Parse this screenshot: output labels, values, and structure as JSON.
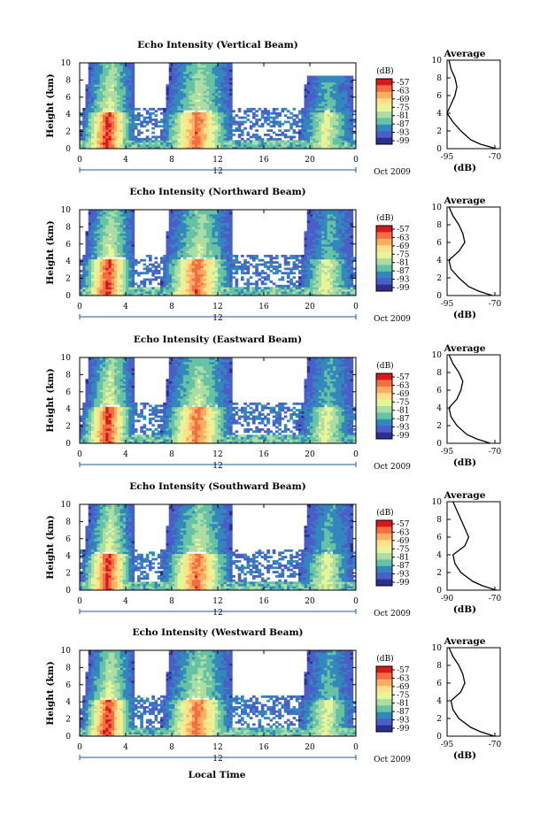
{
  "figure": {
    "xlabel": "Local Time",
    "date_label": "Oct 2009",
    "x_ticks": [
      "0",
      "4",
      "8",
      "12",
      "16",
      "20",
      "0"
    ],
    "x_mid_label": "12",
    "y_label": "Height (km)",
    "y_ticks": [
      "0",
      "2",
      "4",
      "6",
      "8",
      "10"
    ],
    "colorbar_unit": "(dB)",
    "colorbar_ticks": [
      "-57",
      "-63",
      "-69",
      "-75",
      "-81",
      "-87",
      "-93",
      "-99"
    ],
    "colorbar_colors": [
      "#d7191c",
      "#f46d43",
      "#fdae61",
      "#fee08b",
      "#e6f598",
      "#abdda4",
      "#66c2a5",
      "#3288bd",
      "#4a5ec9",
      "#2b2f8f"
    ],
    "avg_title": "Average",
    "avg_xlabel": "(dB)",
    "avg_y_ticks": [
      "0",
      "2",
      "4",
      "6",
      "8",
      "10"
    ]
  },
  "chart_data": [
    {
      "type": "heatmap",
      "title": "Echo Intensity (Vertical Beam)",
      "xlabel": "Local Time",
      "ylabel": "Height (km)",
      "xlim": [
        0,
        24
      ],
      "ylim": [
        0,
        10
      ],
      "clim": [
        -99,
        -57
      ],
      "precip_events": [
        {
          "start_hr": 1.5,
          "end_hr": 4.0,
          "max_height_km": 10.0,
          "core_dB": -57
        },
        {
          "start_hr": 8.5,
          "end_hr": 12.5,
          "max_height_km": 10.0,
          "core_dB": -61
        },
        {
          "start_hr": 20.5,
          "end_hr": 23.0,
          "max_height_km": 8.5,
          "core_dB": -75
        }
      ],
      "average_profile": {
        "xlim": [
          -95,
          -68
        ],
        "xticks": [
          "-95",
          "-70"
        ],
        "height_km": [
          0,
          0.5,
          1,
          2,
          3,
          4,
          5,
          6,
          7,
          8,
          9,
          10
        ],
        "dB": [
          -70,
          -78,
          -83,
          -88,
          -92,
          -95,
          -93,
          -91,
          -90,
          -91,
          -93,
          -94
        ]
      }
    },
    {
      "type": "heatmap",
      "title": "Echo Intensity (Northward Beam)",
      "xlabel": "Local Time",
      "ylabel": "Height (km)",
      "xlim": [
        0,
        24
      ],
      "ylim": [
        0,
        10
      ],
      "clim": [
        -99,
        -57
      ],
      "precip_events": [
        {
          "start_hr": 1.5,
          "end_hr": 4.0,
          "max_height_km": 10.0,
          "core_dB": -57
        },
        {
          "start_hr": 8.5,
          "end_hr": 12.5,
          "max_height_km": 10.0,
          "core_dB": -61
        },
        {
          "start_hr": 20.5,
          "end_hr": 23.0,
          "max_height_km": 10.0,
          "core_dB": -75
        }
      ],
      "average_profile": {
        "xlim": [
          -95,
          -68
        ],
        "xticks": [
          "-95",
          "-70"
        ],
        "height_km": [
          0,
          0.5,
          1,
          2,
          3,
          4,
          5,
          6,
          7,
          8,
          9,
          10
        ],
        "dB": [
          -72,
          -79,
          -84,
          -89,
          -93,
          -94,
          -89,
          -86,
          -87,
          -89,
          -92,
          -94
        ]
      }
    },
    {
      "type": "heatmap",
      "title": "Echo Intensity (Eastward Beam)",
      "xlabel": "Local Time",
      "ylabel": "Height (km)",
      "xlim": [
        0,
        24
      ],
      "ylim": [
        0,
        10
      ],
      "clim": [
        -99,
        -57
      ],
      "precip_events": [
        {
          "start_hr": 1.5,
          "end_hr": 4.0,
          "max_height_km": 10.0,
          "core_dB": -57
        },
        {
          "start_hr": 8.5,
          "end_hr": 12.5,
          "max_height_km": 10.0,
          "core_dB": -61
        },
        {
          "start_hr": 20.5,
          "end_hr": 23.0,
          "max_height_km": 10.0,
          "core_dB": -75
        }
      ],
      "average_profile": {
        "xlim": [
          -95,
          -68
        ],
        "xticks": [
          "-95",
          "-70"
        ],
        "height_km": [
          0,
          0.5,
          1,
          2,
          3,
          4,
          5,
          6,
          7,
          8,
          9,
          10
        ],
        "dB": [
          -73,
          -80,
          -85,
          -90,
          -93,
          -94,
          -90,
          -88,
          -87,
          -89,
          -92,
          -94
        ]
      }
    },
    {
      "type": "heatmap",
      "title": "Echo Intensity (Southward Beam)",
      "xlabel": "Local Time",
      "ylabel": "Height (km)",
      "xlim": [
        0,
        24
      ],
      "ylim": [
        0,
        10
      ],
      "clim": [
        -99,
        -57
      ],
      "precip_events": [
        {
          "start_hr": 1.5,
          "end_hr": 4.0,
          "max_height_km": 10.0,
          "core_dB": -57
        },
        {
          "start_hr": 8.5,
          "end_hr": 12.5,
          "max_height_km": 10.0,
          "core_dB": -61
        },
        {
          "start_hr": 20.5,
          "end_hr": 23.0,
          "max_height_km": 10.0,
          "core_dB": -75
        }
      ],
      "average_profile": {
        "xlim": [
          -95,
          -68
        ],
        "xticks": [
          "-90",
          "-70"
        ],
        "height_km": [
          0,
          0.5,
          1,
          2,
          3,
          4,
          5,
          6,
          7,
          8,
          9,
          10
        ],
        "dB": [
          -70,
          -77,
          -82,
          -88,
          -91,
          -92,
          -86,
          -84,
          -86,
          -88,
          -90,
          -92
        ]
      }
    },
    {
      "type": "heatmap",
      "title": "Echo Intensity (Westward Beam)",
      "xlabel": "Local Time",
      "ylabel": "Height (km)",
      "xlim": [
        0,
        24
      ],
      "ylim": [
        0,
        10
      ],
      "clim": [
        -99,
        -57
      ],
      "precip_events": [
        {
          "start_hr": 1.5,
          "end_hr": 4.0,
          "max_height_km": 10.0,
          "core_dB": -57
        },
        {
          "start_hr": 8.5,
          "end_hr": 12.5,
          "max_height_km": 10.0,
          "core_dB": -61
        },
        {
          "start_hr": 20.5,
          "end_hr": 23.0,
          "max_height_km": 10.0,
          "core_dB": -75
        }
      ],
      "average_profile": {
        "xlim": [
          -95,
          -68
        ],
        "xticks": [
          "-95",
          "-70"
        ],
        "height_km": [
          0,
          0.5,
          1,
          2,
          3,
          4,
          5,
          6,
          7,
          8,
          9,
          10
        ],
        "dB": [
          -71,
          -78,
          -83,
          -89,
          -92,
          -93,
          -88,
          -86,
          -87,
          -89,
          -92,
          -94
        ]
      }
    }
  ]
}
